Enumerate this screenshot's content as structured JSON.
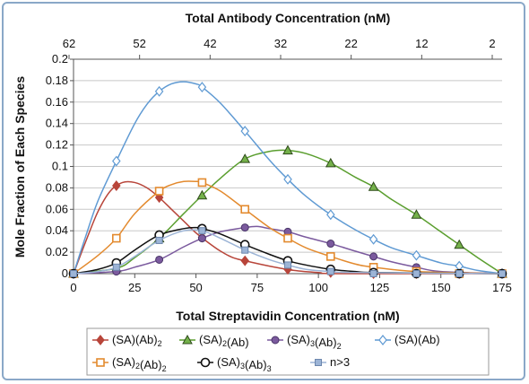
{
  "chart_data": {
    "type": "line",
    "xlabel": "Total Streptavidin Concentration (nM)",
    "ylabel": "Mole Fraction of Each Species",
    "x2label": "Total Antibody Concentration (nM)",
    "xlim": [
      0,
      175
    ],
    "ylim": [
      0,
      0.2
    ],
    "x_ticks": [
      "0",
      "25",
      "50",
      "75",
      "100",
      "125",
      "150",
      "175"
    ],
    "y_ticks": [
      "0",
      "0.02",
      "0.04",
      "0.06",
      "0.08",
      "0.1",
      "0.12",
      "0.14",
      "0.16",
      "0.18",
      "0.2"
    ],
    "x2_ticks": [
      "62",
      "52",
      "42",
      "32",
      "22",
      "12",
      "2"
    ],
    "legend_position": "bottom",
    "series": [
      {
        "name_main": "(SA)(Ab)",
        "sub1": "2",
        "name_mid": "",
        "sub2": "",
        "color": "#b8453a",
        "marker": "diamond",
        "x": [
          0,
          17.5,
          35,
          52.5,
          70,
          87.5,
          105,
          122.5,
          140,
          157.5,
          175
        ],
        "y": [
          0,
          0.082,
          0.071,
          0.034,
          0.012,
          0.004,
          0.001,
          0,
          0,
          0,
          0
        ],
        "curve_x": [
          0,
          5,
          10,
          15,
          20,
          25,
          30,
          35,
          40,
          45,
          50,
          55,
          60,
          65,
          70,
          80,
          90,
          100,
          110,
          175
        ],
        "curve_y": [
          0,
          0.03,
          0.058,
          0.077,
          0.085,
          0.085,
          0.08,
          0.071,
          0.06,
          0.049,
          0.038,
          0.029,
          0.021,
          0.015,
          0.012,
          0.007,
          0.003,
          0.001,
          0,
          0
        ]
      },
      {
        "name_main": "(SA)",
        "sub1": "2",
        "name_mid": "(Ab)",
        "sub2": "",
        "color": "#5a9e2e",
        "marker": "triangle",
        "x": [
          0,
          17.5,
          35,
          52.5,
          70,
          87.5,
          105,
          122.5,
          140,
          157.5,
          175
        ],
        "y": [
          0,
          0.005,
          0.033,
          0.073,
          0.107,
          0.115,
          0.103,
          0.081,
          0.055,
          0.027,
          0
        ],
        "curve_x": [
          0,
          17.5,
          25,
          35,
          45,
          52.5,
          60,
          70,
          80,
          87.5,
          95,
          105,
          115,
          122.5,
          130,
          140,
          150,
          157.5,
          165,
          175
        ],
        "curve_y": [
          0,
          0.005,
          0.015,
          0.033,
          0.056,
          0.073,
          0.089,
          0.107,
          0.114,
          0.115,
          0.112,
          0.103,
          0.09,
          0.081,
          0.069,
          0.055,
          0.039,
          0.027,
          0.015,
          0
        ]
      },
      {
        "name_main": "(SA)",
        "sub1": "3",
        "name_mid": "(Ab)",
        "sub2": "2",
        "color": "#7b5a9e",
        "marker": "circle",
        "x": [
          0,
          17.5,
          35,
          52.5,
          70,
          87.5,
          105,
          122.5,
          140,
          157.5,
          175
        ],
        "y": [
          0,
          0.002,
          0.013,
          0.033,
          0.043,
          0.039,
          0.028,
          0.016,
          0.006,
          0.001,
          0
        ],
        "curve_x": [
          0,
          17.5,
          25,
          35,
          45,
          52.5,
          60,
          70,
          75,
          80,
          87.5,
          95,
          105,
          115,
          122.5,
          130,
          140,
          150,
          175
        ],
        "curve_y": [
          0,
          0.002,
          0.006,
          0.013,
          0.025,
          0.033,
          0.039,
          0.043,
          0.044,
          0.042,
          0.039,
          0.034,
          0.028,
          0.021,
          0.016,
          0.011,
          0.006,
          0.002,
          0
        ]
      },
      {
        "name_main": "(SA)(Ab)",
        "sub1": "",
        "name_mid": "",
        "sub2": "",
        "color": "#5f9ad3",
        "marker": "open-diamond",
        "x": [
          0,
          17.5,
          35,
          52.5,
          70,
          87.5,
          105,
          122.5,
          140,
          157.5,
          175
        ],
        "y": [
          0,
          0.105,
          0.17,
          0.174,
          0.133,
          0.088,
          0.055,
          0.032,
          0.017,
          0.007,
          0
        ],
        "curve_x": [
          0,
          5,
          10,
          17.5,
          25,
          30,
          35,
          40,
          45,
          50,
          52.5,
          60,
          70,
          80,
          87.5,
          95,
          105,
          115,
          122.5,
          130,
          140,
          150,
          157.5,
          165,
          175
        ],
        "curve_y": [
          0,
          0.035,
          0.068,
          0.105,
          0.14,
          0.158,
          0.17,
          0.177,
          0.179,
          0.177,
          0.174,
          0.159,
          0.133,
          0.106,
          0.088,
          0.072,
          0.055,
          0.041,
          0.032,
          0.024,
          0.017,
          0.01,
          0.007,
          0.003,
          0
        ]
      },
      {
        "name_main": "(SA)",
        "sub1": "2",
        "name_mid": "(Ab)",
        "sub2": "2",
        "color": "#e38a2e",
        "marker": "open-square",
        "x": [
          0,
          17.5,
          35,
          52.5,
          70,
          87.5,
          105,
          122.5,
          140,
          157.5,
          175
        ],
        "y": [
          0,
          0.033,
          0.077,
          0.085,
          0.06,
          0.033,
          0.016,
          0.006,
          0.002,
          0,
          0
        ],
        "curve_x": [
          0,
          10,
          17.5,
          25,
          35,
          40,
          45,
          50,
          52.5,
          60,
          70,
          80,
          87.5,
          95,
          105,
          115,
          122.5,
          140,
          175
        ],
        "curve_y": [
          0,
          0.017,
          0.033,
          0.056,
          0.077,
          0.083,
          0.086,
          0.086,
          0.085,
          0.077,
          0.06,
          0.043,
          0.033,
          0.024,
          0.016,
          0.009,
          0.006,
          0.002,
          0
        ]
      },
      {
        "name_main": "(SA)",
        "sub1": "3",
        "name_mid": "(Ab)",
        "sub2": "3",
        "color": "#111111",
        "marker": "open-circle",
        "x": [
          0,
          17.5,
          35,
          52.5,
          70,
          87.5,
          105,
          122.5,
          140,
          157.5,
          175
        ],
        "y": [
          0,
          0.01,
          0.036,
          0.042,
          0.027,
          0.012,
          0.004,
          0.001,
          0,
          0,
          0
        ],
        "curve_x": [
          0,
          10,
          17.5,
          25,
          35,
          45,
          50,
          52.5,
          60,
          70,
          80,
          87.5,
          95,
          105,
          115,
          125,
          175
        ],
        "curve_y": [
          0,
          0.004,
          0.01,
          0.022,
          0.036,
          0.042,
          0.043,
          0.042,
          0.037,
          0.027,
          0.018,
          0.012,
          0.008,
          0.004,
          0.002,
          0.001,
          0
        ]
      },
      {
        "name_main": "n>3",
        "sub1": "",
        "name_mid": "",
        "sub2": "",
        "color": "#9cb4d6",
        "marker": "square",
        "x": [
          0,
          17.5,
          35,
          52.5,
          70,
          87.5,
          105,
          122.5,
          140,
          157.5,
          175
        ],
        "y": [
          0,
          0.006,
          0.031,
          0.04,
          0.022,
          0.008,
          0.002,
          0,
          0,
          0,
          0
        ],
        "curve_x": [
          0,
          10,
          17.5,
          25,
          35,
          45,
          52.5,
          60,
          70,
          80,
          87.5,
          95,
          105,
          115,
          175
        ],
        "curve_y": [
          0,
          0.002,
          0.006,
          0.016,
          0.031,
          0.04,
          0.04,
          0.033,
          0.022,
          0.013,
          0.008,
          0.004,
          0.002,
          0.001,
          0
        ]
      }
    ]
  }
}
